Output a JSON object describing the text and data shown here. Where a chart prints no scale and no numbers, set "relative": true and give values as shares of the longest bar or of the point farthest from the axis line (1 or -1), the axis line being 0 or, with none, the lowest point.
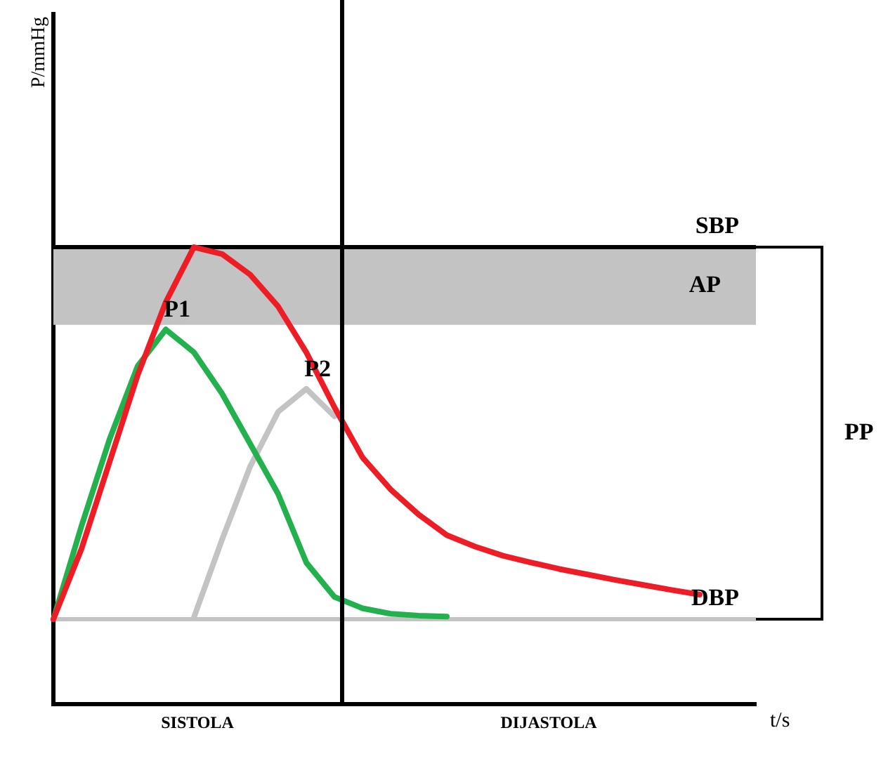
{
  "chart_data": {
    "type": "line",
    "relative": true,
    "xlabel": "t/s",
    "grid": false,
    "line_style": "solid",
    "marker": "none",
    "categories": [
      null,
      null,
      null,
      null,
      null,
      null,
      null,
      null,
      null,
      null,
      null,
      null,
      null,
      null,
      null,
      null,
      null,
      null,
      null,
      null,
      null,
      null,
      null,
      null,
      null,
      null
    ],
    "series": [
      {
        "color": "#ee1c24",
        "values": [
          0.186,
          0.34,
          0.53,
          0.72,
          0.88,
          1.0,
          0.985,
          0.94,
          0.87,
          0.77,
          0.65,
          0.54,
          0.47,
          0.415,
          0.37,
          0.345,
          0.325,
          0.31,
          0.296,
          0.284,
          0.272,
          0.261,
          0.25,
          0.24,
          null,
          null
        ]
      },
      {
        "name": "P1",
        "color": "#22b14c",
        "values": [
          0.186,
          0.39,
          0.58,
          0.74,
          0.82,
          0.77,
          0.68,
          0.57,
          0.46,
          0.31,
          0.235,
          0.21,
          0.198,
          0.194,
          0.192,
          null,
          null,
          null,
          null,
          null,
          null,
          null,
          null,
          null,
          null,
          null
        ]
      },
      {
        "name": "P2",
        "color": "#c3c3c3",
        "values": [
          null,
          null,
          null,
          null,
          null,
          0.19,
          0.36,
          0.52,
          0.64,
          0.69,
          0.63,
          null,
          null,
          null,
          null,
          null,
          null,
          null,
          null,
          null,
          null,
          null,
          null,
          null,
          null,
          null
        ]
      }
    ],
    "ref_lines": [
      {
        "axis": "y",
        "value": 1.0,
        "label": "SBP",
        "color": "#000000"
      },
      {
        "axis": "y",
        "value": 0.186,
        "label": "DBP",
        "color": "#c3c3c3"
      }
    ],
    "bands": [
      {
        "axis": "y",
        "from": 0.83,
        "to": 1.0,
        "label": "AP",
        "color": "#c3c3c3"
      }
    ],
    "annotations": [
      "SISTOLA",
      "DIJASTOLA",
      "PP",
      "P/mmHg"
    ]
  }
}
